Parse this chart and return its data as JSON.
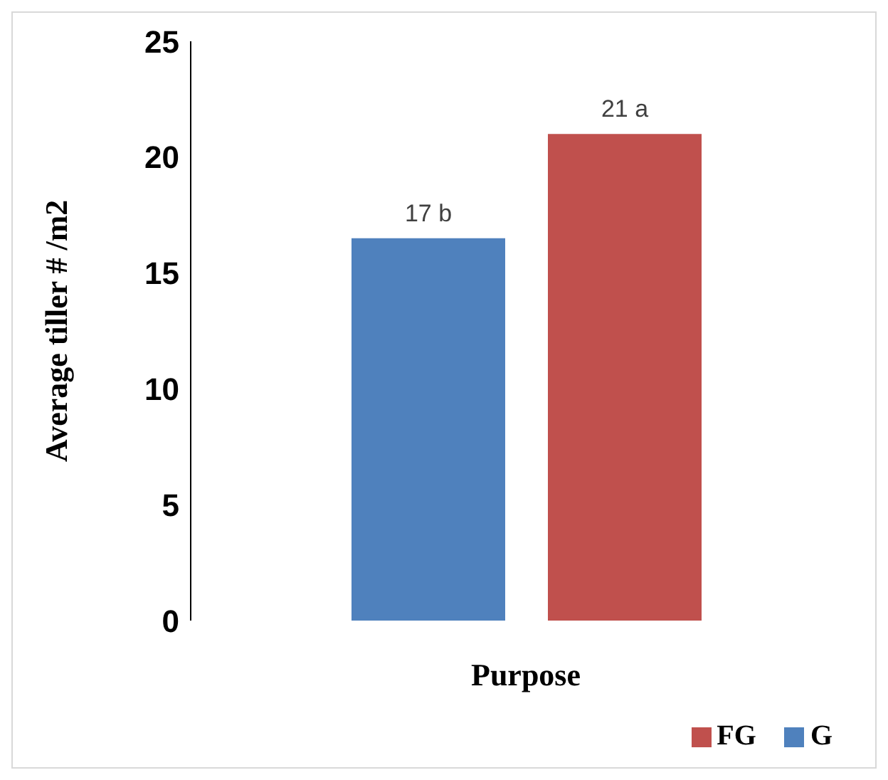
{
  "chart_data": {
    "type": "bar",
    "xlabel": "Purpose",
    "ylabel": "Average tiller # /m2",
    "categories": [
      null
    ],
    "series": [
      {
        "name": "G",
        "color": "#4f81bd",
        "values": [
          16.5
        ],
        "value_labels": [
          "17 b"
        ]
      },
      {
        "name": "FG",
        "color": "#c0504d",
        "values": [
          21
        ],
        "value_labels": [
          "21 a"
        ]
      }
    ],
    "ylim": [
      0,
      25
    ],
    "yticks": [
      0,
      5,
      10,
      15,
      20,
      25
    ],
    "grid": false,
    "legend": "bottom right"
  }
}
